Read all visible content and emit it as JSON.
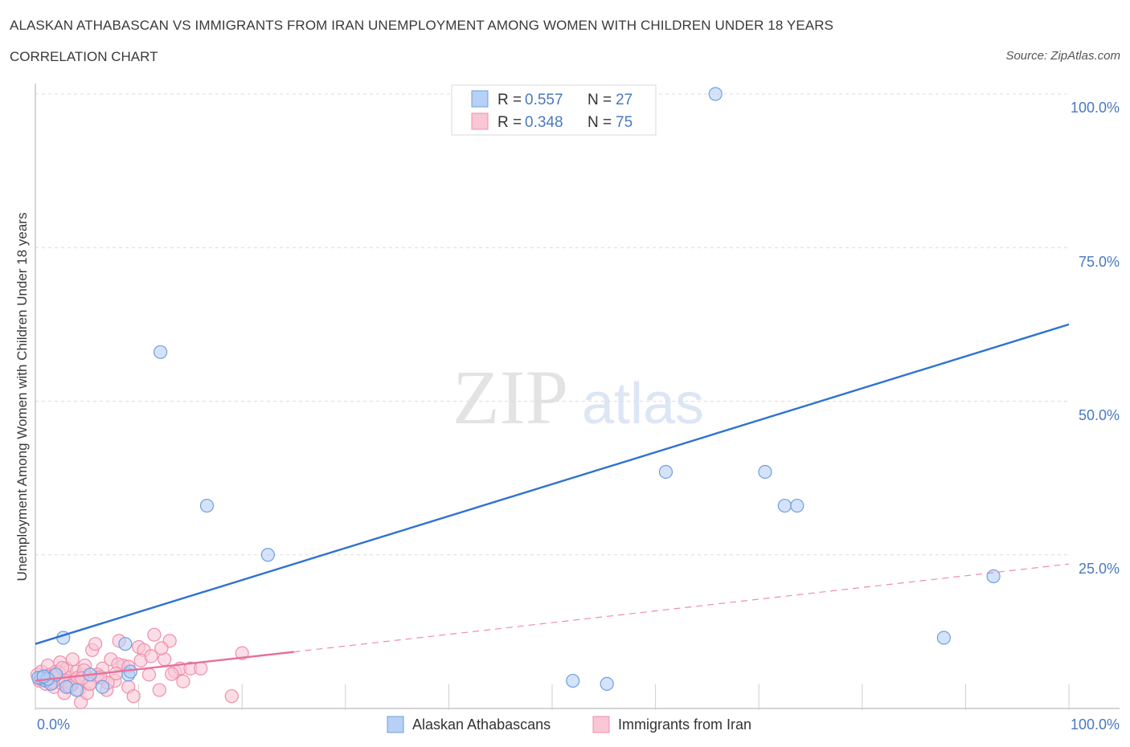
{
  "header": {
    "title": "ALASKAN ATHABASCAN VS IMMIGRANTS FROM IRAN UNEMPLOYMENT AMONG WOMEN WITH CHILDREN UNDER 18 YEARS",
    "subtitle": "CORRELATION CHART",
    "source": "Source: ZipAtlas.com"
  },
  "watermark": {
    "zip": "ZIP",
    "atlas": "atlas"
  },
  "legend": {
    "rows": [
      {
        "r_label": "R = ",
        "r_value": "0.557",
        "n_label": "N = ",
        "n_value": "27",
        "color": "#b7d0f5"
      },
      {
        "r_label": "R = ",
        "r_value": "0.348",
        "n_label": "N = ",
        "n_value": "75",
        "color": "#f9c6d6"
      }
    ]
  },
  "chart_data": {
    "type": "scatter",
    "title": "ALASKAN ATHABASCAN VS IMMIGRANTS FROM IRAN UNEMPLOYMENT AMONG WOMEN WITH CHILDREN UNDER 18 YEARS",
    "subtitle": "CORRELATION CHART",
    "xlabel": "",
    "ylabel": "Unemployment Among Women with Children Under 18 years",
    "xlim": [
      0,
      100
    ],
    "ylim": [
      0,
      100
    ],
    "x_tick_labels": [
      "0.0%",
      "100.0%"
    ],
    "y_tick_labels": [
      "100.0%",
      "75.0%",
      "50.0%",
      "25.0%"
    ],
    "y_ticks": [
      100,
      75,
      50,
      25
    ],
    "grid": true,
    "legend_position": "bottom",
    "colors": {
      "athabascan_fill": "#b7d0f5",
      "athabascan_stroke": "#6f9fe0",
      "athabascan_line": "#2f72d0",
      "iran_fill": "#f9c6d6",
      "iran_stroke": "#ee8fae",
      "iran_line": "#e8709a"
    },
    "series": [
      {
        "name": "Alaskan Athabascans",
        "x": [
          2.7,
          12.1,
          16.6,
          22.5,
          61.0,
          70.6,
          65.8,
          72.5,
          73.7,
          87.9,
          92.7,
          5.3,
          8.7,
          9.0,
          0.6,
          1.0,
          1.5,
          3.0,
          4.0,
          6.5,
          9.2,
          0.3,
          2.0,
          55.3,
          52.0,
          1.2,
          0.8
        ],
        "y": [
          11.5,
          58.0,
          33.0,
          25.0,
          38.5,
          38.5,
          100,
          33.0,
          33.0,
          11.5,
          21.5,
          5.5,
          10.5,
          5.5,
          5.0,
          4.5,
          4.0,
          3.5,
          3.0,
          3.5,
          6.0,
          5.0,
          5.5,
          4.0,
          4.5,
          4.8,
          5.2
        ]
      },
      {
        "name": "Immigrants from Iran",
        "x": [
          0.2,
          0.4,
          0.6,
          0.8,
          1.0,
          1.2,
          1.4,
          1.6,
          1.8,
          2.0,
          2.2,
          2.4,
          2.6,
          2.8,
          3.0,
          3.2,
          3.4,
          3.6,
          3.8,
          4.0,
          4.2,
          4.4,
          4.6,
          4.8,
          5.0,
          5.2,
          5.5,
          5.8,
          6.1,
          6.5,
          6.9,
          7.3,
          7.7,
          8.1,
          8.5,
          9.0,
          9.5,
          10.0,
          10.5,
          11.0,
          11.5,
          12.0,
          12.5,
          13.0,
          13.5,
          14.0,
          15.0,
          16.0,
          19.0,
          20.0,
          0.5,
          1.1,
          1.7,
          2.3,
          2.9,
          3.5,
          4.1,
          4.7,
          5.3,
          6.0,
          7.0,
          8.0,
          9.0,
          10.2,
          11.2,
          12.2,
          13.2,
          14.3,
          0.9,
          1.9,
          2.6,
          3.3,
          4.5,
          6.3,
          7.8
        ],
        "y": [
          5.5,
          4.5,
          6.0,
          5.0,
          4.0,
          7.0,
          5.5,
          4.5,
          3.5,
          6.0,
          5.0,
          7.5,
          4.0,
          2.5,
          6.5,
          3.5,
          5.0,
          8.0,
          4.5,
          6.0,
          3.0,
          1.0,
          5.5,
          7.0,
          2.5,
          4.0,
          9.5,
          10.5,
          5.0,
          6.5,
          3.0,
          8.0,
          4.5,
          11.0,
          7.0,
          3.5,
          2.0,
          10.0,
          9.5,
          5.5,
          12.0,
          3.0,
          8.0,
          11.0,
          6.0,
          6.5,
          6.5,
          6.5,
          2.0,
          9.0,
          4.8,
          5.2,
          4.2,
          5.8,
          4.5,
          3.8,
          5.0,
          6.2,
          4.0,
          5.5,
          4.2,
          7.2,
          6.8,
          7.8,
          8.5,
          9.8,
          5.6,
          4.4,
          4.6,
          5.4,
          6.6,
          3.6,
          4.9,
          5.1,
          5.7
        ]
      }
    ],
    "trendlines": [
      {
        "series": "Alaskan Athabascans",
        "x1": 0,
        "y1": 10.5,
        "x2": 100,
        "y2": 62.5,
        "style": "solid"
      },
      {
        "series": "Immigrants from Iran",
        "x1": 0,
        "y1": 4.5,
        "x2": 25,
        "y2": 9.2,
        "style": "solid"
      },
      {
        "series": "Immigrants from Iran",
        "x1": 25,
        "y1": 9.2,
        "x2": 100,
        "y2": 23.5,
        "style": "dashed"
      }
    ]
  }
}
